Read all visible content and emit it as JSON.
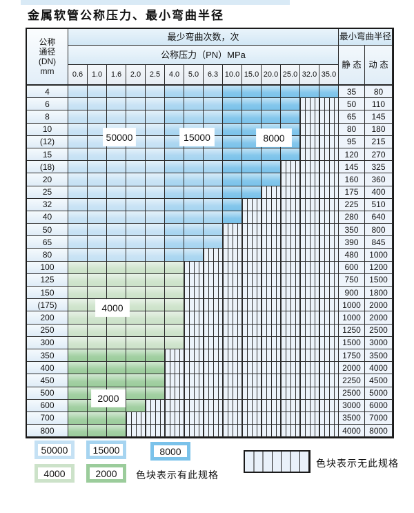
{
  "title": "金属软管公称压力、最小弯曲半径",
  "colors": {
    "blue_50000": "#c5e1f4",
    "blue_15000": "#a6d4f0",
    "blue_8000": "#7ac2ea",
    "green_4000": "#cce2c9",
    "green_2000": "#9bcc9b",
    "no_spec_bg": "#ecf3fa"
  },
  "table": {
    "header": {
      "dn_label_lines": [
        "公称",
        "通径",
        "(DN)",
        "mm"
      ],
      "cycles_label": "最少弯曲次数，次",
      "pressure_label": "公称压力（PN）MPa",
      "radius_label": "最小弯曲半径",
      "static_label": "静 态",
      "dynamic_label": "动 态",
      "pressures": [
        "0.6",
        "1.0",
        "1.6",
        "2.0",
        "2.5",
        "4.0",
        "5.0",
        "6.3",
        "10.0",
        "15.0",
        "20.0",
        "25.0",
        "32.0",
        "35.0"
      ]
    },
    "blue_zone_breaks": {
      "light_cols": 5,
      "mid_cols": 8
    },
    "rows": [
      {
        "dn": "4",
        "colored": 14,
        "scheme": "blue",
        "static": "35",
        "dynamic": "80"
      },
      {
        "dn": "6",
        "colored": 12,
        "scheme": "blue",
        "static": "50",
        "dynamic": "110"
      },
      {
        "dn": "8",
        "colored": 12,
        "scheme": "blue",
        "static": "65",
        "dynamic": "145"
      },
      {
        "dn": "10",
        "colored": 12,
        "scheme": "blue",
        "static": "80",
        "dynamic": "180"
      },
      {
        "dn": "(12)",
        "colored": 12,
        "scheme": "blue",
        "static": "95",
        "dynamic": "215"
      },
      {
        "dn": "15",
        "colored": 12,
        "scheme": "blue",
        "static": "120",
        "dynamic": "270"
      },
      {
        "dn": "(18)",
        "colored": 11,
        "scheme": "blue",
        "static": "145",
        "dynamic": "325"
      },
      {
        "dn": "20",
        "colored": 11,
        "scheme": "blue",
        "static": "160",
        "dynamic": "360"
      },
      {
        "dn": "25",
        "colored": 10,
        "scheme": "blue",
        "static": "175",
        "dynamic": "400"
      },
      {
        "dn": "32",
        "colored": 9,
        "scheme": "blue",
        "static": "225",
        "dynamic": "510"
      },
      {
        "dn": "40",
        "colored": 9,
        "scheme": "blue",
        "static": "280",
        "dynamic": "640"
      },
      {
        "dn": "50",
        "colored": 8,
        "scheme": "blue",
        "static": "350",
        "dynamic": "800"
      },
      {
        "dn": "65",
        "colored": 8,
        "scheme": "blue",
        "static": "390",
        "dynamic": "845"
      },
      {
        "dn": "80",
        "colored": 7,
        "scheme": "blue",
        "static": "480",
        "dynamic": "1000"
      },
      {
        "dn": "100",
        "colored": 6,
        "scheme": "green_4000",
        "static": "600",
        "dynamic": "1200"
      },
      {
        "dn": "125",
        "colored": 6,
        "scheme": "green_4000",
        "static": "750",
        "dynamic": "1500"
      },
      {
        "dn": "150",
        "colored": 6,
        "scheme": "green_4000",
        "static": "900",
        "dynamic": "1800"
      },
      {
        "dn": "(175)",
        "colored": 6,
        "scheme": "green_4000",
        "static": "1000",
        "dynamic": "2000"
      },
      {
        "dn": "200",
        "colored": 6,
        "scheme": "green_4000",
        "static": "1000",
        "dynamic": "2000"
      },
      {
        "dn": "250",
        "colored": 6,
        "scheme": "green_4000",
        "static": "1250",
        "dynamic": "2500"
      },
      {
        "dn": "300",
        "colored": 6,
        "scheme": "green_4000",
        "static": "1500",
        "dynamic": "3000"
      },
      {
        "dn": "350",
        "colored": 5,
        "scheme": "green_2000",
        "static": "1750",
        "dynamic": "3500"
      },
      {
        "dn": "400",
        "colored": 5,
        "scheme": "green_2000",
        "static": "2000",
        "dynamic": "4000"
      },
      {
        "dn": "450",
        "colored": 5,
        "scheme": "green_2000",
        "static": "2250",
        "dynamic": "4500"
      },
      {
        "dn": "500",
        "colored": 5,
        "scheme": "green_2000",
        "static": "2500",
        "dynamic": "5000"
      },
      {
        "dn": "600",
        "colored": 4,
        "scheme": "green_2000",
        "static": "3000",
        "dynamic": "6000"
      },
      {
        "dn": "700",
        "colored": 3,
        "scheme": "green_2000",
        "static": "3500",
        "dynamic": "7000"
      },
      {
        "dn": "800",
        "colored": 3,
        "scheme": "green_2000",
        "static": "4000",
        "dynamic": "8000"
      }
    ]
  },
  "overlays": [
    {
      "text": "50000"
    },
    {
      "text": "15000"
    },
    {
      "text": "8000"
    },
    {
      "text": "4000"
    },
    {
      "text": "2000"
    }
  ],
  "legend": {
    "items": [
      {
        "value": "50000",
        "color_key": "blue_50000"
      },
      {
        "value": "15000",
        "color_key": "blue_15000"
      },
      {
        "value": "8000",
        "color_key": "blue_8000"
      },
      {
        "value": "4000",
        "color_key": "green_4000"
      },
      {
        "value": "2000",
        "color_key": "green_2000"
      }
    ],
    "has_spec_text": "色块表示有此规格",
    "no_spec_text": "色块表示无此规格"
  }
}
